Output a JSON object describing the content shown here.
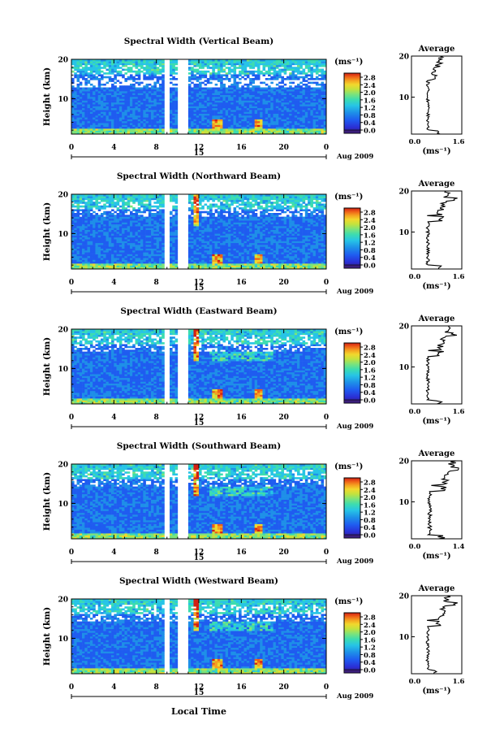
{
  "chart_data": [
    {
      "type": "heatmap",
      "title": "Spectral Width (Vertical Beam)",
      "ylabel": "Height (km)",
      "x_ticks": [
        "0",
        "4",
        "8",
        "12",
        "16",
        "20",
        "0"
      ],
      "y_ticks": [
        "20",
        "10"
      ],
      "xlim": [
        0,
        24
      ],
      "ylim": [
        1,
        20
      ],
      "date_center": "15",
      "date_label": "Aug 2009",
      "colorbar": {
        "unit": "(ms⁻¹)",
        "ticks": [
          "2.8",
          "2.4",
          "2.0",
          "1.6",
          "1.2",
          "0.8",
          "0.4",
          "0.0"
        ]
      },
      "average": {
        "title": "Average",
        "x_ticks": [
          "0.0",
          "1.6"
        ],
        "y_ticks": [
          "20",
          "10"
        ],
        "xlabel": "(ms⁻¹)"
      }
    },
    {
      "type": "heatmap",
      "title": "Spectral Width (Northward Beam)",
      "ylabel": "Height (km)",
      "x_ticks": [
        "0",
        "4",
        "8",
        "12",
        "16",
        "20",
        "0"
      ],
      "y_ticks": [
        "20",
        "10"
      ],
      "xlim": [
        0,
        24
      ],
      "ylim": [
        1,
        20
      ],
      "date_center": "15",
      "date_label": "Aug 2009",
      "colorbar": {
        "unit": "(ms⁻¹)",
        "ticks": [
          "2.8",
          "2.4",
          "2.0",
          "1.6",
          "1.2",
          "0.8",
          "0.4",
          "0.0"
        ]
      },
      "average": {
        "title": "Average",
        "x_ticks": [
          "0.0",
          "1.6"
        ],
        "y_ticks": [
          "20",
          "10"
        ],
        "xlabel": "(ms⁻¹)"
      }
    },
    {
      "type": "heatmap",
      "title": "Spectral Width (Eastward Beam)",
      "ylabel": "Height (km)",
      "x_ticks": [
        "0",
        "4",
        "8",
        "12",
        "16",
        "20",
        "0"
      ],
      "y_ticks": [
        "20",
        "10"
      ],
      "xlim": [
        0,
        24
      ],
      "ylim": [
        1,
        20
      ],
      "date_center": "15",
      "date_label": "Aug 2009",
      "colorbar": {
        "unit": "(ms⁻¹)",
        "ticks": [
          "2.8",
          "2.4",
          "2.0",
          "1.6",
          "1.2",
          "0.8",
          "0.4",
          "0.0"
        ]
      },
      "average": {
        "title": "Average",
        "x_ticks": [
          "0.0",
          "1.6"
        ],
        "y_ticks": [
          "20",
          "10"
        ],
        "xlabel": "(ms⁻¹)"
      }
    },
    {
      "type": "heatmap",
      "title": "Spectral Width (Southward Beam)",
      "ylabel": "Height (km)",
      "x_ticks": [
        "0",
        "4",
        "8",
        "12",
        "16",
        "20",
        "0"
      ],
      "y_ticks": [
        "20",
        "10"
      ],
      "xlim": [
        0,
        24
      ],
      "ylim": [
        1,
        20
      ],
      "date_center": "15",
      "date_label": "Aug 2009",
      "colorbar": {
        "unit": "(ms⁻¹)",
        "ticks": [
          "2.8",
          "2.4",
          "2.0",
          "1.6",
          "1.2",
          "0.8",
          "0.4",
          "0.0"
        ]
      },
      "average": {
        "title": "Average",
        "x_ticks": [
          "0.0",
          "1.4"
        ],
        "y_ticks": [
          "20",
          "10"
        ],
        "xlabel": "(ms⁻¹)"
      }
    },
    {
      "type": "heatmap",
      "title": "Spectral Width (Westward Beam)",
      "ylabel": "Height (km)",
      "x_ticks": [
        "0",
        "4",
        "8",
        "12",
        "16",
        "20",
        "0"
      ],
      "y_ticks": [
        "20",
        "10"
      ],
      "xlim": [
        0,
        24
      ],
      "ylim": [
        1,
        20
      ],
      "date_center": "15",
      "date_label": "Aug 2009",
      "colorbar": {
        "unit": "(ms⁻¹)",
        "ticks": [
          "2.8",
          "2.4",
          "2.0",
          "1.6",
          "1.2",
          "0.8",
          "0.4",
          "0.0"
        ]
      },
      "average": {
        "title": "Average",
        "x_ticks": [
          "0.0",
          "1.6"
        ],
        "y_ticks": [
          "20",
          "10"
        ],
        "xlabel": "(ms⁻¹)"
      }
    }
  ],
  "xlabel": "Local Time",
  "colors": [
    "#3b1e7a",
    "#2a2fd6",
    "#1f5cf0",
    "#1e8fe8",
    "#27c4e6",
    "#3cdcb0",
    "#7de37a",
    "#c2e23f",
    "#f2d82d",
    "#f5a020",
    "#ee6018",
    "#d22014"
  ]
}
